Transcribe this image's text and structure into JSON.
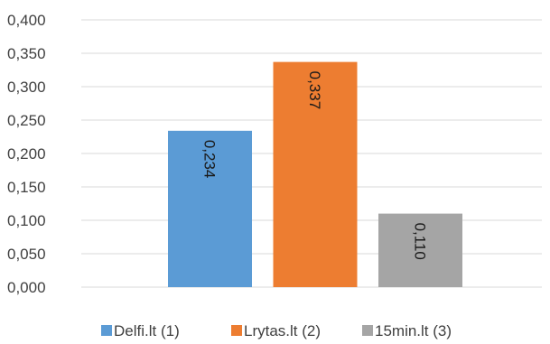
{
  "chart_data": {
    "type": "bar",
    "title": "",
    "xlabel": "",
    "ylabel": "",
    "ylim": [
      0,
      0.4
    ],
    "ytick_step": 0.05,
    "y_ticks": [
      "0,000",
      "0,050",
      "0,100",
      "0,150",
      "0,200",
      "0,250",
      "0,300",
      "0,350",
      "0,400"
    ],
    "grid": true,
    "legend_position": "bottom",
    "series": [
      {
        "name": "Delfi.lt (1)",
        "value": 0.234,
        "label": "0,234",
        "color": "#5b9bd5"
      },
      {
        "name": "Lrytas.lt (2)",
        "value": 0.337,
        "label": "0,337",
        "color": "#ed7d31"
      },
      {
        "name": "15min.lt (3)",
        "value": 0.11,
        "label": "0,110",
        "color": "#a5a5a5"
      }
    ]
  }
}
